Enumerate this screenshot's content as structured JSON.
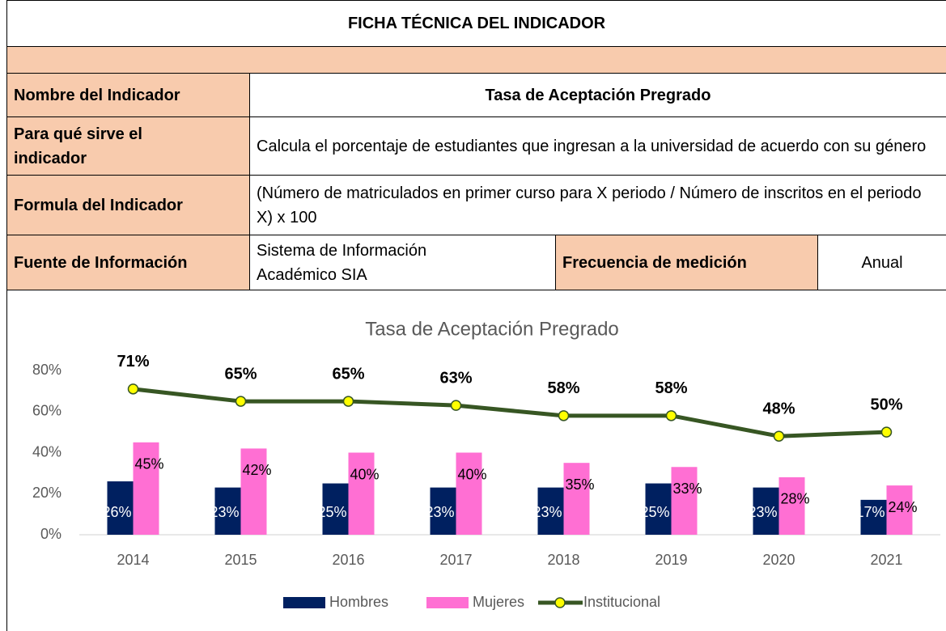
{
  "table": {
    "title": "FICHA TÉCNICA DEL INDICADOR",
    "rows": [
      [
        "Nombre del Indicador",
        "Tasa de Aceptación Pregrado"
      ],
      [
        "Para qué sirve el indicador",
        "Calcula el porcentaje de estudiantes que ingresan a la universidad de acuerdo con su género"
      ],
      [
        "Formula del Indicador",
        "(Número de matriculados en primer curso para X periodo / Número de inscritos en el periodo X) x 100"
      ],
      [
        "Fuente de Información",
        "Sistema de Información Académico SIA",
        "Frecuencia de medición",
        "Anual"
      ]
    ]
  },
  "chart_data": {
    "type": "bar",
    "title": "Tasa de Aceptación Pregrado",
    "categories": [
      "2014",
      "2015",
      "2016",
      "2017",
      "2018",
      "2019",
      "2020",
      "2021"
    ],
    "series": [
      {
        "name": "Hombres",
        "color": "#002060",
        "values": [
          26,
          23,
          25,
          23,
          23,
          25,
          23,
          17
        ],
        "value_labels": [
          "26%",
          "23%",
          "25%",
          "23%",
          "23%",
          "25%",
          "23%",
          "17%"
        ]
      },
      {
        "name": "Mujeres",
        "color": "#ff6fd3",
        "values": [
          45,
          42,
          40,
          40,
          35,
          33,
          28,
          24
        ],
        "value_labels": [
          "45%",
          "42%",
          "40%",
          "40%",
          "35%",
          "33%",
          "28%",
          "24%"
        ]
      },
      {
        "name": "Institucional",
        "type": "line",
        "color": "#375623",
        "marker_color": "#ffff00",
        "values": [
          71,
          65,
          65,
          63,
          58,
          58,
          48,
          50
        ],
        "value_labels": [
          "71%",
          "65%",
          "65%",
          "63%",
          "58%",
          "58%",
          "48%",
          "50%"
        ]
      }
    ],
    "ylim": [
      0,
      80
    ],
    "yticks": [
      {
        "value": 0,
        "label": "0%"
      },
      {
        "value": 20,
        "label": "20%"
      },
      {
        "value": 40,
        "label": "40%"
      },
      {
        "value": 60,
        "label": "60%"
      },
      {
        "value": 80,
        "label": "80%"
      }
    ],
    "grid": false,
    "legend": "bottom"
  }
}
